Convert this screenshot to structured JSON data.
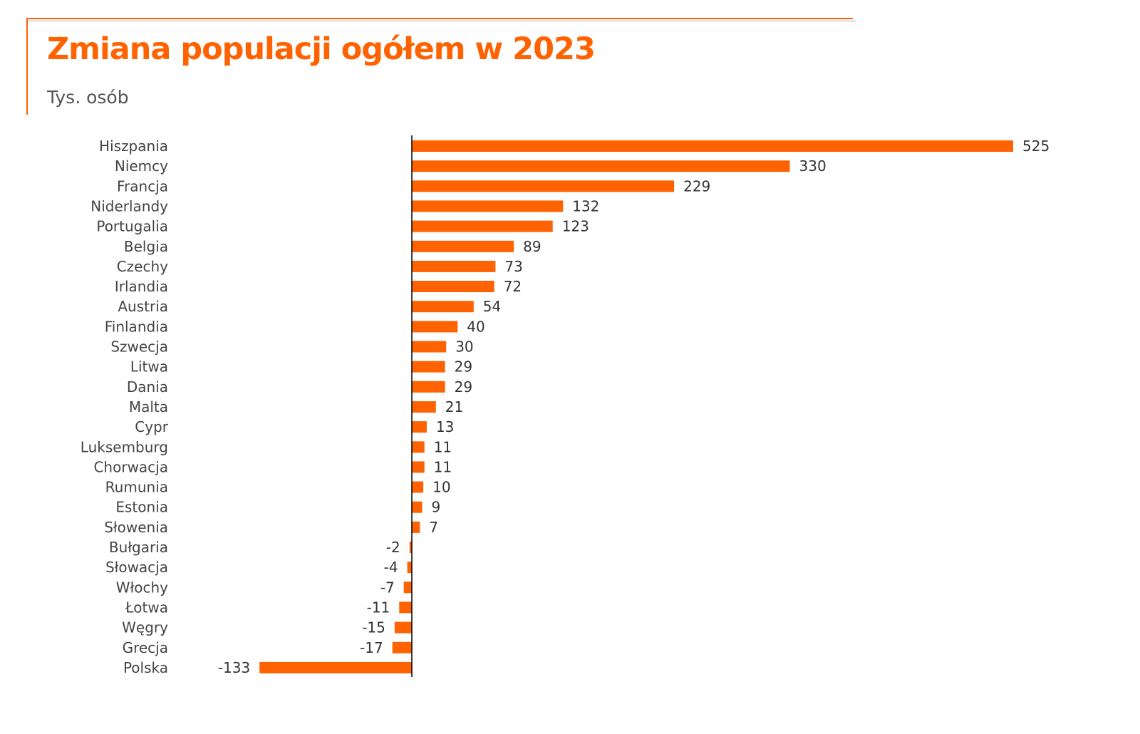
{
  "chart_data": {
    "type": "bar",
    "orientation": "horizontal",
    "title": "Zmiana populacji ogółem w 2023",
    "subtitle": "Tys. osób",
    "categories": [
      "Hiszpania",
      "Niemcy",
      "Francja",
      "Niderlandy",
      "Portugalia",
      "Belgia",
      "Czechy",
      "Irlandia",
      "Austria",
      "Finlandia",
      "Szwecja",
      "Litwa",
      "Dania",
      "Malta",
      "Cypr",
      "Luksemburg",
      "Chorwacja",
      "Rumunia",
      "Estonia",
      "Słowenia",
      "Bułgaria",
      "Słowacja",
      "Włochy",
      "Łotwa",
      "Węgry",
      "Grecja",
      "Polska"
    ],
    "values": [
      525,
      330,
      229,
      132,
      123,
      89,
      73,
      72,
      54,
      40,
      30,
      29,
      29,
      21,
      13,
      11,
      11,
      10,
      9,
      7,
      -2,
      -4,
      -7,
      -11,
      -15,
      -17,
      -133
    ],
    "xlim": [
      -133,
      525
    ],
    "grid": false,
    "legend": "none",
    "data_labels": true
  },
  "colors": {
    "bar": "#ff6200",
    "title": "#ff6200",
    "frame": "#ff6200",
    "axis": "#000000"
  }
}
